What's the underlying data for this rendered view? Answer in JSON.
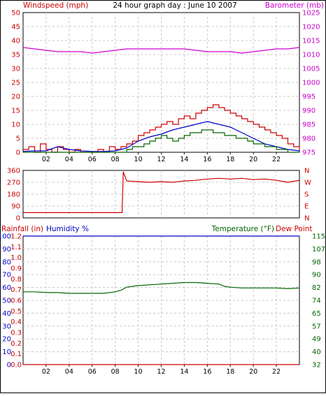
{
  "colors": {
    "red": "#cc0000",
    "blue": "#0000cc",
    "green": "#006600",
    "magenta": "#cc00cc",
    "grid": "#c8c8c8",
    "frame": "#000000"
  },
  "chart_data": [
    {
      "id": "wind-baro",
      "type": "line",
      "title": "24 hour graph day : June 10 2007",
      "left_axis_label": "Windspeed (mph)",
      "right_axis_label": "Barometer (mb)",
      "x_ticks": [
        "02",
        "04",
        "06",
        "08",
        "10",
        "12",
        "14",
        "16",
        "18",
        "20",
        "22"
      ],
      "left_ylim": [
        0,
        50
      ],
      "left_ticks": [
        "0",
        "5",
        "10",
        "15",
        "20",
        "25",
        "30",
        "35",
        "40",
        "45",
        "50"
      ],
      "right_ylim": [
        975,
        1025
      ],
      "right_ticks": [
        "975",
        "980",
        "985",
        "990",
        "995",
        "1000",
        "1005",
        "1010",
        "1015",
        "1020",
        "1025"
      ],
      "grid": true,
      "series": [
        {
          "axis": "right",
          "color": "magenta",
          "x": [
            0,
            1,
            2,
            3,
            4,
            5,
            6,
            7,
            8,
            9,
            10,
            11,
            12,
            13,
            14,
            15,
            16,
            17,
            18,
            19,
            20,
            21,
            22,
            23,
            24
          ],
          "values": [
            1012.5,
            1012,
            1011.5,
            1011,
            1011,
            1011,
            1010.5,
            1011,
            1011.5,
            1012,
            1012,
            1012,
            1012,
            1012,
            1012,
            1011.5,
            1011,
            1011,
            1011,
            1010.5,
            1011,
            1011.5,
            1012,
            1012,
            1012.5
          ]
        },
        {
          "axis": "left",
          "color": "red",
          "x": [
            0,
            0.5,
            1,
            1.5,
            2,
            2.5,
            3,
            3.5,
            4,
            4.5,
            5,
            5.5,
            6,
            6.5,
            7,
            7.5,
            8,
            8.5,
            9,
            9.5,
            10,
            10.5,
            11,
            11.5,
            12,
            12.5,
            13,
            13.5,
            14,
            14.5,
            15,
            15.5,
            16,
            16.5,
            17,
            17.5,
            18,
            18.5,
            19,
            19.5,
            20,
            20.5,
            21,
            21.5,
            22,
            22.5,
            23,
            23.5,
            24
          ],
          "values": [
            1,
            2,
            0,
            3,
            1,
            0,
            2,
            1,
            0,
            1,
            0,
            0,
            0,
            1,
            0,
            2,
            1,
            2,
            3,
            4,
            6,
            7,
            8,
            9,
            10,
            11,
            10,
            12,
            13,
            12,
            14,
            15,
            16,
            17,
            16,
            15,
            14,
            13,
            12,
            11,
            10,
            9,
            8,
            7,
            6,
            5,
            3,
            2,
            1
          ]
        },
        {
          "axis": "left",
          "color": "blue",
          "x": [
            0,
            1,
            2,
            3,
            4,
            5,
            6,
            7,
            8,
            9,
            10,
            11,
            12,
            13,
            14,
            15,
            16,
            17,
            18,
            19,
            20,
            21,
            22,
            23,
            24
          ],
          "values": [
            0.3,
            0.5,
            0.5,
            2,
            1,
            0.5,
            0.3,
            0.3,
            0.5,
            1.5,
            4,
            5.5,
            6.5,
            8,
            9,
            10,
            11,
            10,
            9,
            7,
            5,
            3,
            2,
            1,
            0.5
          ]
        },
        {
          "axis": "left",
          "color": "green",
          "x": [
            0,
            0.5,
            1,
            1.5,
            2,
            2.5,
            3,
            3.5,
            4,
            4.5,
            5,
            5.5,
            6,
            6.5,
            7,
            7.5,
            8,
            8.5,
            9,
            9.5,
            10,
            10.5,
            11,
            11.5,
            12,
            12.5,
            13,
            13.5,
            14,
            14.5,
            15,
            15.5,
            16,
            16.5,
            17,
            17.5,
            18,
            18.5,
            19,
            19.5,
            20,
            20.5,
            21,
            21.5,
            22,
            22.5,
            23,
            23.5,
            24
          ],
          "values": [
            0,
            0,
            0,
            0,
            0,
            0,
            0,
            0,
            0,
            0,
            0,
            0,
            0,
            0,
            0,
            0,
            0,
            0,
            1,
            2,
            2,
            3,
            4,
            5,
            6,
            5,
            4,
            5,
            6,
            7,
            7,
            8,
            8,
            7,
            7,
            6,
            6,
            5,
            5,
            4,
            3,
            3,
            2,
            2,
            1,
            1,
            0,
            0,
            0
          ]
        }
      ]
    },
    {
      "id": "wind-direction",
      "type": "line",
      "x_ticks": [],
      "left_ylim": [
        0,
        360
      ],
      "left_ticks": [
        "0",
        "90",
        "180",
        "270",
        "360"
      ],
      "right_ticks": [
        "N",
        "E",
        "S",
        "W",
        "N"
      ],
      "grid": true,
      "series": [
        {
          "axis": "left",
          "color": "red",
          "x": [
            0,
            1,
            2,
            3,
            4,
            5,
            6,
            7,
            8,
            8.6,
            8.7,
            9,
            10,
            11,
            12,
            13,
            14,
            15,
            16,
            17,
            18,
            19,
            20,
            21,
            22,
            23,
            24
          ],
          "values": [
            40,
            40,
            40,
            40,
            40,
            40,
            40,
            40,
            40,
            40,
            350,
            280,
            275,
            270,
            275,
            270,
            280,
            285,
            295,
            300,
            295,
            300,
            290,
            295,
            285,
            270,
            285
          ]
        }
      ]
    },
    {
      "id": "rain-humidity-temp",
      "type": "line",
      "left_axis_label": "Rainfall (in)",
      "left_axis_label_2": "Humidity %",
      "right_axis_label": "Temperature (°F)",
      "right_axis_label_2": "Dew Point",
      "x_ticks": [
        "02",
        "04",
        "06",
        "08",
        "10",
        "12",
        "14",
        "16",
        "18",
        "20",
        "22"
      ],
      "rain_ylim": [
        0,
        1.2
      ],
      "rain_ticks": [
        "0.0",
        "0.1",
        "0.2",
        "0.3",
        "0.4",
        "0.5",
        "0.6",
        "0.7",
        "0.8",
        "0.9",
        "1.0",
        "1.1",
        "1.2"
      ],
      "humidity_ylim": [
        0,
        100
      ],
      "humidity_ticks": [
        "0",
        "10",
        "20",
        "30",
        "40",
        "50",
        "60",
        "70",
        "80",
        "90",
        "100"
      ],
      "temp_ylim": [
        32,
        115
      ],
      "temp_ticks": [
        "32",
        "40",
        "49",
        "57",
        "65",
        "74",
        "82",
        "90",
        "98",
        "107",
        "115"
      ],
      "grid": true,
      "series": [
        {
          "axis": "humidity",
          "color": "blue",
          "x": [
            0,
            24
          ],
          "values": [
            100,
            100
          ]
        },
        {
          "axis": "rain",
          "color": "red",
          "x": [
            0,
            24
          ],
          "values": [
            0,
            0
          ]
        },
        {
          "axis": "temp",
          "color": "green",
          "x": [
            0,
            1,
            2,
            3,
            4,
            5,
            6,
            7,
            8,
            8.5,
            9,
            10,
            11,
            12,
            13,
            14,
            15,
            16,
            17,
            17.5,
            18,
            19,
            20,
            21,
            22,
            23,
            24
          ],
          "values": [
            79,
            79,
            78.5,
            78.5,
            78,
            78,
            78,
            78,
            79,
            80,
            82,
            83,
            83.5,
            84,
            84.5,
            85,
            85,
            84.5,
            84,
            82.5,
            82,
            81.5,
            81.5,
            81.5,
            81.5,
            81,
            81.5
          ]
        }
      ]
    }
  ]
}
